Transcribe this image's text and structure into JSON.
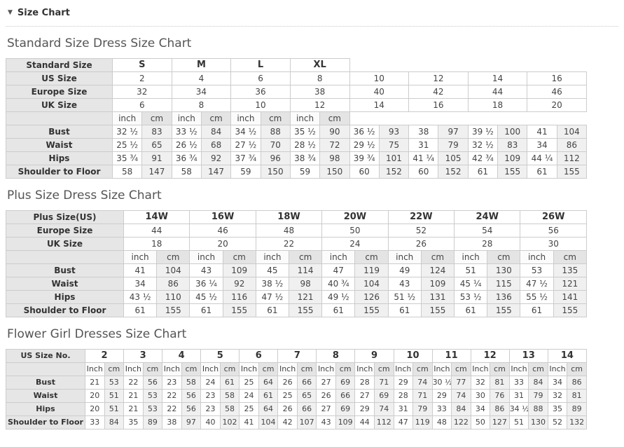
{
  "section_header": {
    "collapse_icon": "▼",
    "title": "Size Chart"
  },
  "colors": {
    "label_column_bg": "#e6e6e6",
    "unit_cm_bg": "#e4e4e4",
    "value_cm_bg": "#f0f0f0",
    "border": "#cccccc",
    "heading_text": "#555555",
    "cell_text": "#444444"
  },
  "tables": {
    "standard": {
      "heading": "Standard Size Dress Size Chart",
      "header_label": "Standard Size",
      "group_headers": [
        "S",
        "M",
        "L",
        "XL"
      ],
      "info_rows": [
        {
          "label": "US Size",
          "values": [
            "2",
            "4",
            "6",
            "8",
            "10",
            "12",
            "14",
            "16"
          ]
        },
        {
          "label": "Europe Size",
          "values": [
            "32",
            "34",
            "36",
            "38",
            "40",
            "42",
            "44",
            "46"
          ]
        },
        {
          "label": "UK Size",
          "values": [
            "6",
            "8",
            "10",
            "12",
            "14",
            "16",
            "18",
            "20"
          ]
        }
      ],
      "unit_labels": [
        "inch",
        "cm"
      ],
      "measure_rows": [
        {
          "label": "Bust",
          "values": [
            "32 ½",
            "83",
            "33 ½",
            "84",
            "34 ½",
            "88",
            "35 ½",
            "90",
            "36 ½",
            "93",
            "38",
            "97",
            "39 ½",
            "100",
            "41",
            "104"
          ]
        },
        {
          "label": "Waist",
          "values": [
            "25 ½",
            "65",
            "26 ½",
            "68",
            "27 ½",
            "70",
            "28 ½",
            "72",
            "29 ½",
            "75",
            "31",
            "79",
            "32 ½",
            "83",
            "34",
            "86"
          ]
        },
        {
          "label": "Hips",
          "values": [
            "35 ¾",
            "91",
            "36 ¾",
            "92",
            "37 ¾",
            "96",
            "38 ¾",
            "98",
            "39 ¾",
            "101",
            "41 ¼",
            "105",
            "42 ¾",
            "109",
            "44 ¼",
            "112"
          ]
        },
        {
          "label": "Shoulder to Floor",
          "values": [
            "58",
            "147",
            "58",
            "147",
            "59",
            "150",
            "59",
            "150",
            "60",
            "152",
            "60",
            "152",
            "61",
            "155",
            "61",
            "155"
          ]
        }
      ]
    },
    "plus": {
      "heading": "Plus Size Dress Size Chart",
      "header_label": "Plus Size(US)",
      "group_headers": [
        "14W",
        "16W",
        "18W",
        "20W",
        "22W",
        "24W",
        "26W"
      ],
      "info_rows": [
        {
          "label": "Europe Size",
          "values": [
            "44",
            "46",
            "48",
            "50",
            "52",
            "54",
            "56"
          ]
        },
        {
          "label": "UK Size",
          "values": [
            "18",
            "20",
            "22",
            "24",
            "26",
            "28",
            "30"
          ]
        }
      ],
      "unit_labels": [
        "inch",
        "cm"
      ],
      "measure_rows": [
        {
          "label": "Bust",
          "values": [
            "41",
            "104",
            "43",
            "109",
            "45",
            "114",
            "47",
            "119",
            "49",
            "124",
            "51",
            "130",
            "53",
            "135"
          ]
        },
        {
          "label": "Waist",
          "values": [
            "34",
            "86",
            "36 ¼",
            "92",
            "38 ½",
            "98",
            "40 ¾",
            "104",
            "43",
            "109",
            "45 ¼",
            "115",
            "47 ½",
            "121"
          ]
        },
        {
          "label": "Hips",
          "values": [
            "43 ½",
            "110",
            "45 ½",
            "116",
            "47 ½",
            "121",
            "49 ½",
            "126",
            "51 ½",
            "131",
            "53 ½",
            "136",
            "55 ½",
            "141"
          ]
        },
        {
          "label": "Shoulder to Floor",
          "values": [
            "61",
            "155",
            "61",
            "155",
            "61",
            "155",
            "61",
            "155",
            "61",
            "155",
            "61",
            "155",
            "61",
            "155"
          ]
        }
      ]
    },
    "flower": {
      "heading": "Flower Girl Dresses Size Chart",
      "header_label": "US Size No.",
      "group_headers": [
        "2",
        "3",
        "4",
        "5",
        "6",
        "7",
        "8",
        "9",
        "10",
        "11",
        "12",
        "13",
        "14"
      ],
      "info_rows": [],
      "unit_labels": [
        "Inch",
        "cm"
      ],
      "measure_rows": [
        {
          "label": "Bust",
          "values": [
            "21",
            "53",
            "22",
            "56",
            "23",
            "58",
            "24",
            "61",
            "25",
            "64",
            "26",
            "66",
            "27",
            "69",
            "28",
            "71",
            "29",
            "74",
            "30 ½",
            "77",
            "32",
            "81",
            "33",
            "84",
            "34",
            "86"
          ]
        },
        {
          "label": "Waist",
          "values": [
            "20",
            "51",
            "21",
            "53",
            "22",
            "56",
            "23",
            "58",
            "24",
            "61",
            "25",
            "65",
            "26",
            "66",
            "27",
            "69",
            "28",
            "71",
            "29",
            "74",
            "30",
            "76",
            "31",
            "79",
            "32",
            "81"
          ]
        },
        {
          "label": "Hips",
          "values": [
            "20",
            "51",
            "21",
            "53",
            "22",
            "56",
            "23",
            "58",
            "25",
            "64",
            "26",
            "66",
            "27",
            "69",
            "29",
            "74",
            "31",
            "79",
            "33",
            "84",
            "34",
            "86",
            "34 ½",
            "88",
            "35",
            "89"
          ]
        },
        {
          "label": "Shoulder to Floor",
          "values": [
            "33",
            "84",
            "35",
            "89",
            "38",
            "97",
            "40",
            "102",
            "41",
            "104",
            "42",
            "107",
            "43",
            "109",
            "44",
            "112",
            "47",
            "119",
            "48",
            "122",
            "50",
            "127",
            "51",
            "130",
            "52",
            "132"
          ]
        }
      ]
    }
  }
}
